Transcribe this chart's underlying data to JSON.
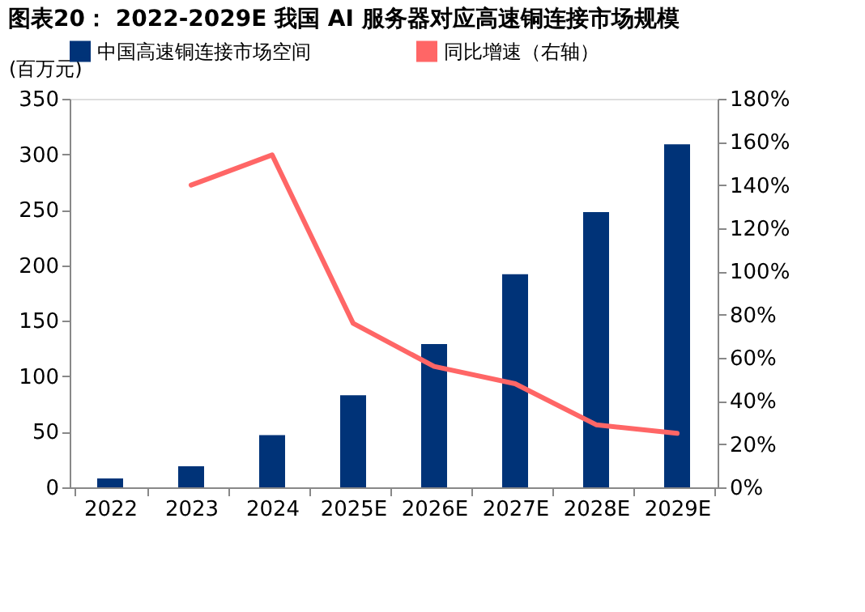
{
  "chart_data": {
    "type": "bar",
    "title": "图表20： 2022-2029E 我国 AI 服务器对应高速铜连接市场规模",
    "ylabel": "(百万元)",
    "categories": [
      "2022",
      "2023",
      "2024",
      "2025E",
      "2026E",
      "2027E",
      "2028E",
      "2029E"
    ],
    "series": [
      {
        "name": "中国高速铜连接市场空间",
        "color": "#003378",
        "values": [
          8,
          19,
          47,
          83,
          129,
          192,
          248,
          309
        ]
      },
      {
        "name": "同比增速（右轴）",
        "type": "line",
        "axis": "y2",
        "color": "#ff6666",
        "values": [
          null,
          140,
          154,
          76,
          56,
          48,
          29,
          25
        ]
      }
    ],
    "ylim": [
      0,
      350
    ],
    "yticks": [
      0,
      50,
      100,
      150,
      200,
      250,
      300,
      350
    ],
    "y2lim": [
      0,
      180
    ],
    "y2ticks": [
      {
        "value": 0,
        "label": "0%"
      },
      {
        "value": 20,
        "label": "20%"
      },
      {
        "value": 40,
        "label": "40%"
      },
      {
        "value": 60,
        "label": "60%"
      },
      {
        "value": 80,
        "label": "80%"
      },
      {
        "value": 100,
        "label": "100%"
      },
      {
        "value": 120,
        "label": "120%"
      },
      {
        "value": 140,
        "label": "140%"
      },
      {
        "value": 160,
        "label": "160%"
      },
      {
        "value": 180,
        "label": "180%"
      }
    ],
    "grid": false,
    "legend": "top"
  }
}
